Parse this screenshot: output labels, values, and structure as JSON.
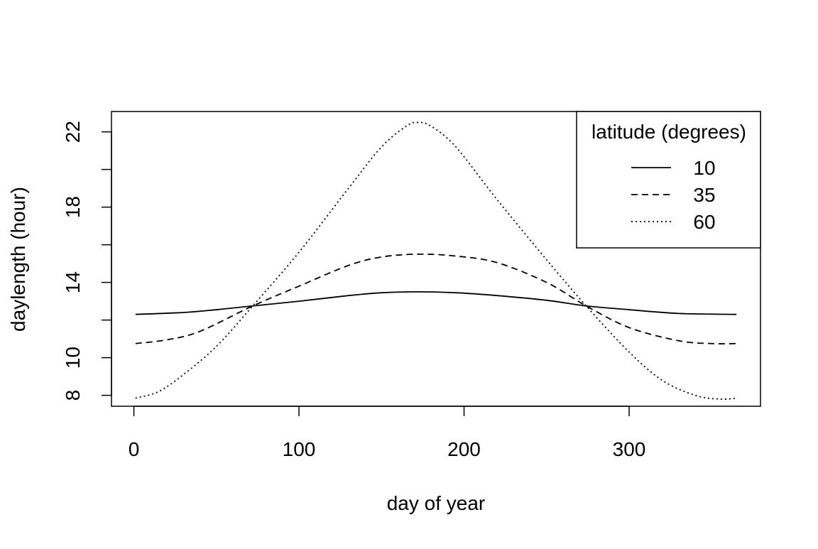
{
  "chart_data": {
    "type": "line",
    "title": "",
    "xlabel": "day of year",
    "ylabel": "daylength (hour)",
    "xlim": [
      1,
      365
    ],
    "ylim": [
      8,
      22.5
    ],
    "x_ticks": [
      0,
      100,
      200,
      300
    ],
    "y_ticks": [
      8,
      10,
      14,
      18,
      22
    ],
    "y_minor_ticks": [
      12,
      16,
      20
    ],
    "grid": false,
    "legend": {
      "title": "latitude (degrees)",
      "placement": "top-right"
    },
    "series": [
      {
        "name": "10",
        "line_style": "solid",
        "x": [
          1,
          30,
          50,
          72,
          100,
          130,
          150,
          172,
          195,
          220,
          250,
          274,
          300,
          330,
          365
        ],
        "y": [
          12.3,
          12.4,
          12.55,
          12.75,
          13.0,
          13.3,
          13.45,
          13.5,
          13.45,
          13.3,
          13.05,
          12.75,
          12.55,
          12.35,
          12.3
        ]
      },
      {
        "name": "35",
        "line_style": "dashed",
        "x": [
          1,
          20,
          40,
          72,
          100,
          130,
          150,
          172,
          195,
          220,
          250,
          274,
          300,
          330,
          350,
          365
        ],
        "y": [
          10.75,
          10.95,
          11.4,
          12.75,
          13.8,
          14.9,
          15.35,
          15.5,
          15.4,
          15.05,
          14.0,
          12.75,
          11.6,
          10.9,
          10.75,
          10.75
        ]
      },
      {
        "name": "60",
        "line_style": "dotted",
        "x": [
          1,
          15,
          30,
          50,
          72,
          100,
          130,
          150,
          165,
          172,
          180,
          195,
          220,
          250,
          274,
          300,
          320,
          340,
          355,
          365
        ],
        "y": [
          7.85,
          8.2,
          9.1,
          10.6,
          12.75,
          15.6,
          19.0,
          21.2,
          22.3,
          22.5,
          22.3,
          21.2,
          18.4,
          15.2,
          12.75,
          10.3,
          8.8,
          8.0,
          7.8,
          7.85
        ]
      }
    ]
  }
}
